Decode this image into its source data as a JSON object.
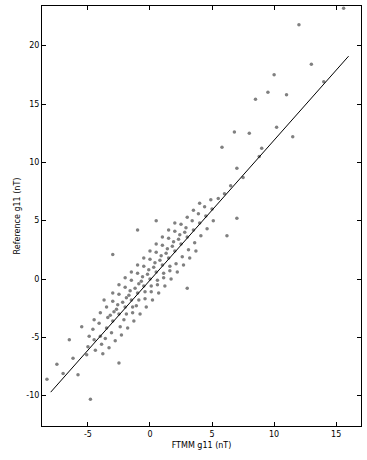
{
  "chart_data": {
    "type": "scatter",
    "x_label": "FTMM g11 (nT)",
    "y_label": "Reference g11 (nT)",
    "xlim": [
      -8.7,
      17
    ],
    "ylim": [
      -12.6,
      23.4
    ],
    "xticks": [
      -5,
      0,
      5,
      10,
      15
    ],
    "yticks": [
      -10,
      -5,
      0,
      5,
      10,
      15,
      20
    ],
    "grid": false,
    "series": [
      {
        "type": "scatter",
        "color": "#808080",
        "marker": "circle",
        "x": [
          -5,
          -5.1,
          -4.9,
          -4.5,
          -4.4,
          -4.6,
          -4.5,
          -4,
          -3.9,
          -4.1,
          -4,
          -3.8,
          -3.5,
          -3.6,
          -3.4,
          -3.5,
          -3.3,
          -3.7,
          -3,
          -3.1,
          -2.9,
          -3,
          -2.8,
          -3.2,
          -3,
          -2.5,
          -2.4,
          -2.6,
          -2.5,
          -2.3,
          -2.7,
          -2.5,
          -2,
          -2.1,
          -1.9,
          -2,
          -1.8,
          -2.2,
          -2,
          -1.9,
          -1.5,
          -1.4,
          -1.6,
          -1.5,
          -1.3,
          -1.7,
          -1.5,
          -1.4,
          -1,
          -1.1,
          -0.9,
          -1,
          -0.8,
          -1.2,
          -1,
          -0.9,
          -0.5,
          -0.4,
          -0.6,
          -0.5,
          -0.3,
          -0.7,
          -0.5,
          -0.4,
          0,
          0.1,
          -0.1,
          0,
          0.2,
          -0.2,
          0,
          0.1,
          0.5,
          0.6,
          0.4,
          0.5,
          0.7,
          0.3,
          0.5,
          0.6,
          1,
          1.1,
          0.9,
          1,
          1.2,
          0.8,
          1,
          1.1,
          1.5,
          1.6,
          1.4,
          1.5,
          1.7,
          1.3,
          1.5,
          1.6,
          2,
          2.1,
          1.9,
          2,
          2.2,
          1.8,
          2,
          2.5,
          2.6,
          2.4,
          2.5,
          2.7,
          2.3,
          3,
          3.1,
          2.9,
          3,
          3.2,
          2.8,
          3.5,
          3.6,
          3.4,
          3.5,
          3.7,
          4,
          4.1,
          3.9,
          4,
          4.5,
          4.6,
          4.4,
          5,
          5.1,
          4.9,
          -8.3,
          -7.5,
          -6.2,
          -5.8,
          -5.5,
          -6.5,
          -2.5,
          -1,
          -3,
          0.5,
          6,
          6.5,
          7,
          5.5,
          7.5,
          8.5,
          8,
          9,
          9.5,
          10,
          10.2,
          11,
          11.5,
          12,
          14,
          15.6,
          6.2,
          7,
          3,
          5.8,
          -4.8,
          -7,
          13,
          8.8,
          6.8
        ],
        "values": [
          -5.8,
          -6.5,
          -4.9,
          -5.2,
          -6.1,
          -4.3,
          -3.5,
          -4.9,
          -5.6,
          -3.8,
          -2.9,
          -6.4,
          -4.2,
          -5.1,
          -3.3,
          -2.4,
          -5.9,
          -1.8,
          -3.6,
          -4.6,
          -2.8,
          -1.9,
          -5.3,
          -3.1,
          -1.2,
          -3.0,
          -4.1,
          -2.2,
          -1.3,
          -4.8,
          -2.6,
          -0.5,
          -2.4,
          -3.5,
          -1.6,
          -0.7,
          -4.2,
          -2.0,
          0.1,
          -3.0,
          -1.8,
          -2.9,
          -1.0,
          -0.1,
          -3.6,
          -1.4,
          0.6,
          -2.4,
          -1.2,
          -2.3,
          -0.4,
          0.5,
          -3.0,
          -0.8,
          1.2,
          -1.8,
          -0.6,
          -1.7,
          0.2,
          1.1,
          -2.4,
          -0.2,
          1.8,
          -1.1,
          0,
          -1.1,
          0.8,
          1.7,
          -1.8,
          0.4,
          2.4,
          -0.6,
          0.6,
          -0.5,
          1.4,
          2.3,
          -1.2,
          1.0,
          3.0,
          -0.1,
          1.2,
          0.1,
          2.0,
          2.9,
          -0.6,
          1.6,
          3.6,
          0.5,
          1.8,
          0.7,
          2.6,
          3.5,
          0,
          2.2,
          4.2,
          1.1,
          2.4,
          1.3,
          3.2,
          4.1,
          0.6,
          2.8,
          4.8,
          3.0,
          1.9,
          3.8,
          4.7,
          1.2,
          3.4,
          3.6,
          2.5,
          4.4,
          5.3,
          1.8,
          4.0,
          4.2,
          3.1,
          5.0,
          5.9,
          2.4,
          4.8,
          3.7,
          5.6,
          6.5,
          5.4,
          4.3,
          6.2,
          6.0,
          5.0,
          6.8,
          -8.6,
          -7.3,
          -6.8,
          -8.2,
          -4.1,
          -5.2,
          -7.2,
          4.2,
          2.1,
          5.0,
          7.3,
          8.0,
          9.5,
          6.9,
          8.7,
          15.4,
          12.5,
          11.2,
          16,
          17.5,
          13.0,
          15.8,
          12.2,
          21.8,
          16.9,
          23.2,
          3.7,
          5.2,
          -0.8,
          11.3,
          -10.3,
          -8.1,
          18.4,
          10.5,
          12.6
        ]
      },
      {
        "type": "line",
        "color": "#000000",
        "line_style": "solid",
        "x": [
          -8,
          16
        ],
        "values": [
          -9.7,
          19.1
        ]
      }
    ]
  }
}
